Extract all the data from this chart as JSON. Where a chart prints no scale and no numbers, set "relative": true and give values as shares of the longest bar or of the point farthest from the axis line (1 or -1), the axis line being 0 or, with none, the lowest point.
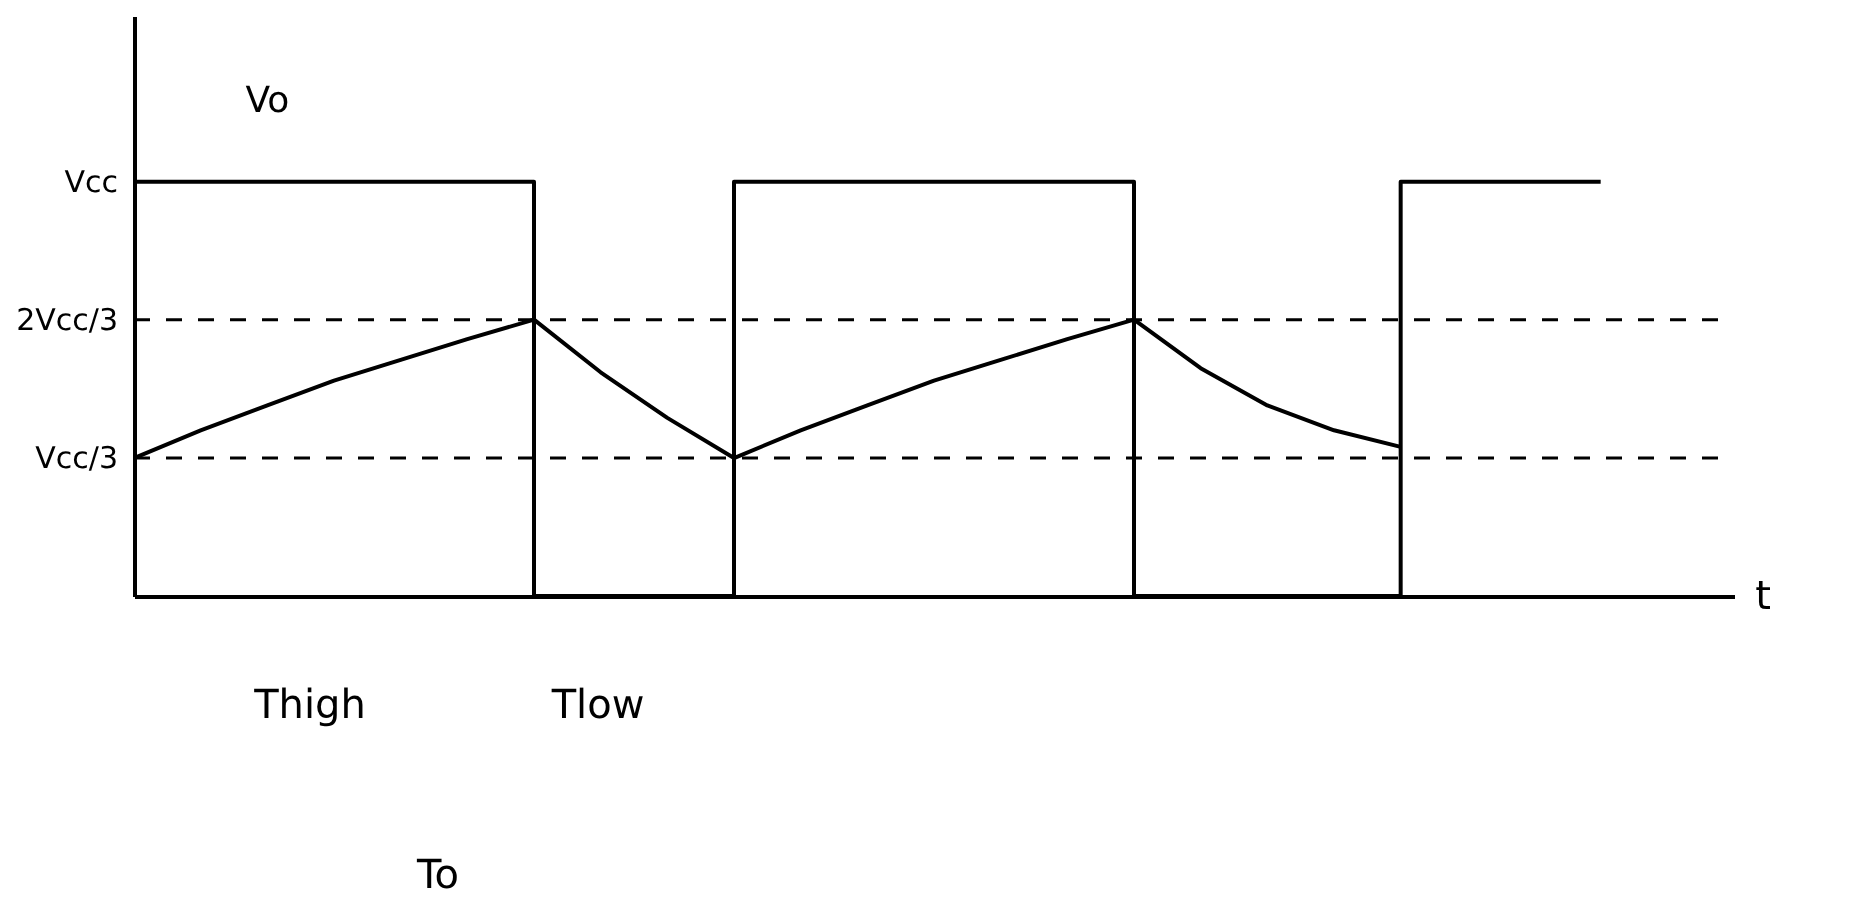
{
  "chart_data": {
    "type": "line",
    "relative": true,
    "xlabel": "t",
    "categories": [
      null,
      null,
      null,
      null,
      null,
      null,
      null,
      null,
      null,
      null,
      null,
      null,
      null,
      null,
      null,
      null,
      null,
      null,
      null,
      null,
      null,
      null,
      null,
      null,
      null
    ],
    "tick_labels": false,
    "grid": false,
    "legend": false,
    "marker": "none",
    "line_style": "solid",
    "series": [
      {
        "name": "Vo",
        "type": "step",
        "color": "#000000",
        "values": [
          1,
          1,
          1,
          1,
          1,
          1,
          0,
          0,
          0,
          1,
          1,
          1,
          1,
          1,
          1,
          0,
          0,
          0,
          0,
          1,
          1,
          1,
          1,
          null,
          null
        ]
      },
      {
        "color": "#000000",
        "values": [
          0.333,
          0.4,
          0.46,
          0.52,
          0.57,
          0.62,
          0.667,
          0.54,
          0.43,
          0.333,
          0.4,
          0.46,
          0.52,
          0.57,
          0.62,
          0.667,
          0.55,
          0.46,
          0.4,
          0.36,
          null,
          null,
          null,
          null,
          null
        ]
      }
    ],
    "ref_lines": [
      {
        "axis": "y",
        "value": 0.667,
        "label": "2Vcc/3",
        "line_style": "dashed",
        "color": "#000000"
      },
      {
        "axis": "y",
        "value": 0.333,
        "label": "Vcc/3",
        "line_style": "dashed",
        "color": "#000000"
      }
    ],
    "annotations": [
      "Vcc",
      "Thigh",
      "Tlow",
      "To"
    ]
  }
}
